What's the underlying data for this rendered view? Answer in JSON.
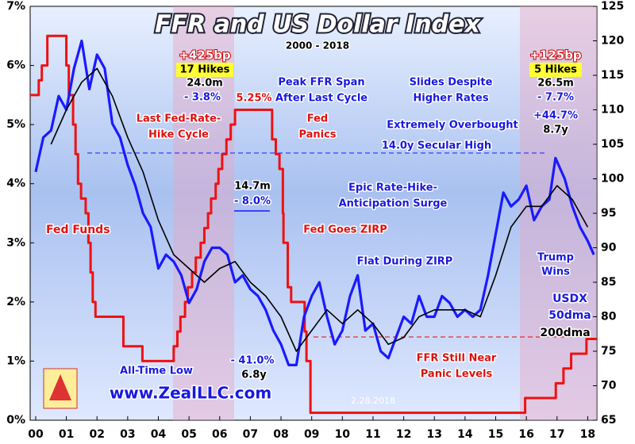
{
  "chart_data": {
    "type": "line",
    "title": "FFR and US Dollar Index",
    "subtitle": "2000 - 2018",
    "xlim": [
      1999.82,
      2018.3
    ],
    "xticks": [
      {
        "value": 2000,
        "label": "00"
      },
      {
        "value": 2001,
        "label": "01"
      },
      {
        "value": 2002,
        "label": "02"
      },
      {
        "value": 2003,
        "label": "03"
      },
      {
        "value": 2004,
        "label": "04"
      },
      {
        "value": 2005,
        "label": "05"
      },
      {
        "value": 2006,
        "label": "06"
      },
      {
        "value": 2007,
        "label": "07"
      },
      {
        "value": 2008,
        "label": "08"
      },
      {
        "value": 2009,
        "label": "09"
      },
      {
        "value": 2010,
        "label": "10"
      },
      {
        "value": 2011,
        "label": "11"
      },
      {
        "value": 2012,
        "label": "12"
      },
      {
        "value": 2013,
        "label": "13"
      },
      {
        "value": 2014,
        "label": "14"
      },
      {
        "value": 2015,
        "label": "15"
      },
      {
        "value": 2016,
        "label": "16"
      },
      {
        "value": 2017,
        "label": "17"
      },
      {
        "value": 2018,
        "label": "18"
      }
    ],
    "ylim": [
      0,
      7
    ],
    "yticks": [
      {
        "value": 0,
        "label": "0%"
      },
      {
        "value": 1,
        "label": "1%"
      },
      {
        "value": 2,
        "label": "2%"
      },
      {
        "value": 3,
        "label": "3%"
      },
      {
        "value": 4,
        "label": "4%"
      },
      {
        "value": 5,
        "label": "5%"
      },
      {
        "value": 6,
        "label": "6%"
      },
      {
        "value": 7,
        "label": "7%"
      }
    ],
    "y2lim": [
      65,
      125
    ],
    "y2ticks": [
      65,
      70,
      75,
      80,
      85,
      90,
      95,
      100,
      105,
      110,
      115,
      120,
      125
    ],
    "grid": false,
    "series": [
      {
        "name": "Fed Funds",
        "color": "#ee1111",
        "step": "post",
        "x": [
          1999.82,
          2000.1,
          2000.2,
          2000.38,
          2001.0,
          2001.08,
          2001.22,
          2001.3,
          2001.38,
          2001.48,
          2001.63,
          2001.72,
          2001.79,
          2001.86,
          2001.95,
          2002.86,
          2003.48,
          2004.5,
          2004.62,
          2004.72,
          2004.87,
          2004.96,
          2005.1,
          2005.22,
          2005.38,
          2005.5,
          2005.62,
          2005.72,
          2005.87,
          2005.96,
          2006.08,
          2006.22,
          2006.36,
          2006.5,
          2007.71,
          2007.83,
          2007.95,
          2008.06,
          2008.08,
          2008.22,
          2008.33,
          2008.77,
          2008.83,
          2008.96,
          2015.96,
          2016.96,
          2017.21,
          2017.46,
          2017.96,
          2018.3
        ],
        "values": [
          5.5,
          5.75,
          6.0,
          6.5,
          6.0,
          5.5,
          5.0,
          4.5,
          4.0,
          3.75,
          3.5,
          3.0,
          2.5,
          2.0,
          1.75,
          1.25,
          1.0,
          1.25,
          1.5,
          1.75,
          2.0,
          2.25,
          2.5,
          2.75,
          3.0,
          3.25,
          3.5,
          3.75,
          4.0,
          4.25,
          4.5,
          4.75,
          5.0,
          5.25,
          4.75,
          4.5,
          4.25,
          3.5,
          3.0,
          2.25,
          2.0,
          1.5,
          1.0,
          0.125,
          0.375,
          0.625,
          0.875,
          1.125,
          1.375,
          1.375
        ]
      },
      {
        "name": "USDX",
        "color": "#1a1aff",
        "axis": "y2",
        "x": [
          2000.0,
          2000.25,
          2000.5,
          2000.75,
          2001.0,
          2001.25,
          2001.5,
          2001.75,
          2002.0,
          2002.25,
          2002.5,
          2002.75,
          2003.0,
          2003.25,
          2003.5,
          2003.75,
          2004.0,
          2004.25,
          2004.5,
          2004.75,
          2005.0,
          2005.25,
          2005.5,
          2005.75,
          2006.0,
          2006.25,
          2006.5,
          2006.75,
          2007.0,
          2007.25,
          2007.5,
          2007.75,
          2008.0,
          2008.25,
          2008.5,
          2008.75,
          2009.0,
          2009.25,
          2009.5,
          2009.75,
          2010.0,
          2010.25,
          2010.5,
          2010.75,
          2011.0,
          2011.25,
          2011.5,
          2011.75,
          2012.0,
          2012.25,
          2012.5,
          2012.75,
          2013.0,
          2013.25,
          2013.5,
          2013.75,
          2014.0,
          2014.25,
          2014.5,
          2014.75,
          2015.0,
          2015.25,
          2015.5,
          2015.75,
          2016.0,
          2016.25,
          2016.5,
          2016.75,
          2016.95,
          2017.25,
          2017.5,
          2017.75,
          2018.0,
          2018.2
        ],
        "values": [
          101,
          106,
          107,
          112,
          110,
          116,
          120,
          113,
          118,
          116,
          108,
          106,
          102,
          99,
          95,
          93,
          87,
          89,
          88,
          86,
          82,
          84,
          88,
          90,
          90,
          89,
          85,
          86,
          84,
          83,
          81,
          78,
          76,
          73,
          73,
          80,
          83,
          85,
          80,
          76,
          78,
          83,
          86,
          78,
          79,
          75,
          74,
          77,
          80,
          79,
          83,
          80,
          80,
          83,
          82,
          80,
          81,
          80,
          81,
          86,
          92,
          98,
          96,
          97,
          99,
          94,
          96,
          97,
          103,
          100,
          96,
          93,
          91,
          89
        ]
      },
      {
        "name": "200dma",
        "color": "#000000",
        "axis": "y2",
        "x": [
          2000.5,
          2001.0,
          2001.5,
          2002.0,
          2002.5,
          2003.0,
          2003.5,
          2004.0,
          2004.5,
          2005.0,
          2005.5,
          2006.0,
          2006.5,
          2007.0,
          2007.5,
          2008.0,
          2008.5,
          2009.0,
          2009.5,
          2010.0,
          2010.5,
          2011.0,
          2011.5,
          2012.0,
          2012.5,
          2013.0,
          2013.5,
          2014.0,
          2014.5,
          2015.0,
          2015.5,
          2016.0,
          2016.5,
          2017.0,
          2017.5,
          2018.0
        ],
        "values": [
          105,
          110,
          114,
          116,
          112,
          106,
          101,
          94,
          89,
          87,
          85,
          87,
          88,
          85,
          83,
          80,
          75,
          78,
          81,
          79,
          81,
          79,
          76,
          77,
          80,
          81,
          81,
          81,
          80,
          86,
          93,
          96,
          96,
          99,
          97,
          93
        ]
      }
    ],
    "annotations": [
      "+425bp",
      "17 Hikes",
      "24.0m",
      "- 3.8%",
      "5.25%",
      "Peak FFR Span",
      "After Last Cycle",
      "Slides Despite",
      "Higher Rates",
      "+125bp",
      "5 Hikes",
      "26.5m",
      "- 7.7%",
      "Last Fed-Rate-",
      "Hike Cycle",
      "Fed",
      "Panics",
      "Extremely Overbought",
      "+44.7%",
      "8.7y",
      "14.0y Secular High",
      "14.7m",
      "- 8.0%",
      "Epic Rate-Hike-",
      "Anticipation Surge",
      "Fed Goes ZIRP",
      "Flat During ZIRP",
      "Trump",
      "Wins",
      "50dma",
      "All-Time Low",
      "- 41.0%",
      "6.8y",
      "FFR Still Near",
      "Panic Levels",
      "www.ZealLLC.com",
      "2.28.2018"
    ]
  }
}
